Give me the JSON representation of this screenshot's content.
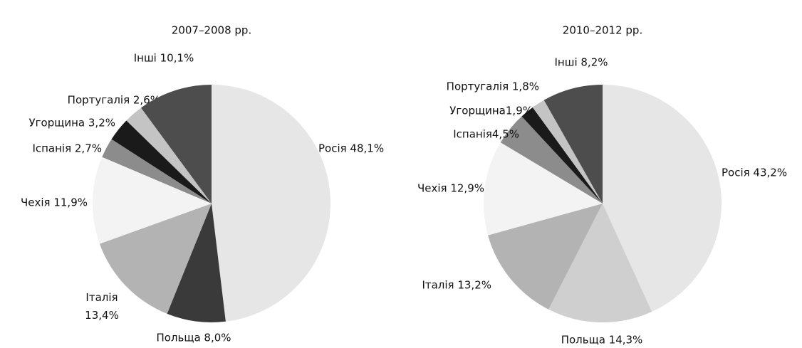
{
  "chart_data": [
    {
      "type": "pie",
      "title": "2007–2008 рр.",
      "values": [
        48.1,
        8.0,
        13.4,
        11.9,
        2.7,
        3.2,
        2.6,
        10.1
      ],
      "value_labels": [
        "Росія 48,1%",
        "Польща 8,0%",
        "Італія\n13,4%",
        "Чехія 11,9%",
        "Іспанія 2,7%",
        "Угорщина 3,2%",
        "Португалія 2,6%",
        "Інші 10,1%"
      ],
      "colors": [
        "#e6e6e6",
        "#3a3a3a",
        "#b3b3b3",
        "#f3f3f3",
        "#8c8c8c",
        "#1a1a1a",
        "#c4c4c4",
        "#4d4d4d"
      ]
    },
    {
      "type": "pie",
      "title": "2010–2012 рр.",
      "values": [
        43.2,
        14.3,
        13.2,
        12.9,
        4.5,
        1.9,
        1.8,
        8.2
      ],
      "value_labels": [
        "Росія 43,2%",
        "Польща 14,3%",
        "Італія 13,2%",
        "Чехія 12,9%",
        "Іспанія4,5%",
        "Угорщина1,9%",
        "Португалія 1,8%",
        "Інші 8,2%"
      ],
      "colors": [
        "#e6e6e6",
        "#cfcfcf",
        "#b3b3b3",
        "#f3f3f3",
        "#8c8c8c",
        "#1a1a1a",
        "#c4c4c4",
        "#4d4d4d"
      ]
    }
  ]
}
